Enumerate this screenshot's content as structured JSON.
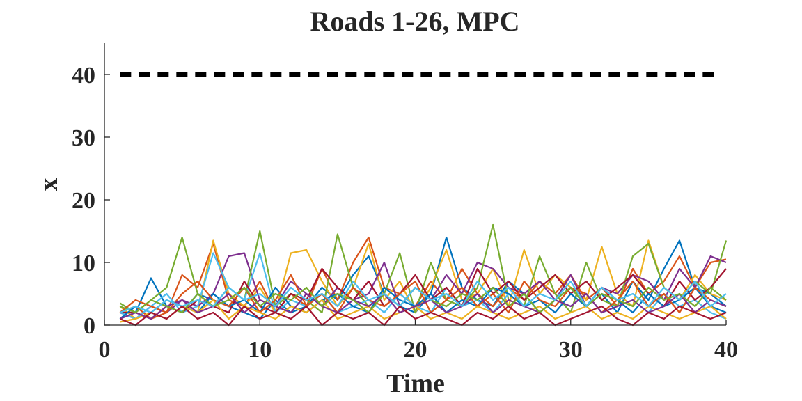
{
  "chart_data": {
    "type": "line",
    "title": "Roads 1-26, MPC",
    "xlabel": "Time",
    "ylabel": "x",
    "xlim": [
      0,
      40
    ],
    "ylim": [
      0,
      45
    ],
    "xticks": [
      0,
      10,
      20,
      30,
      40
    ],
    "yticks": [
      0,
      10,
      20,
      30,
      40
    ],
    "grid": false,
    "legend": "none",
    "threshold": {
      "value": 40,
      "style": "dashed",
      "color": "#000000"
    },
    "series_colors": [
      "#0072BD",
      "#D95319",
      "#EDB120",
      "#7E2F8E",
      "#77AC30",
      "#4DBEEE",
      "#A2142F"
    ],
    "x": [
      1,
      2,
      3,
      4,
      5,
      6,
      7,
      8,
      9,
      10,
      11,
      12,
      13,
      14,
      15,
      16,
      17,
      18,
      19,
      20,
      21,
      22,
      23,
      24,
      25,
      26,
      27,
      28,
      29,
      30,
      31,
      32,
      33,
      34,
      35,
      36,
      37,
      38,
      39,
      40
    ],
    "series": [
      {
        "values": [
          1,
          2,
          7.5,
          3,
          2,
          5,
          4,
          3,
          2,
          1,
          4,
          2,
          3,
          6,
          4,
          8,
          11,
          5,
          3,
          2,
          5,
          14,
          6,
          4,
          3,
          7,
          5,
          2,
          4,
          6,
          3,
          5,
          2,
          7,
          4,
          9,
          13.5,
          6,
          5,
          3
        ]
      },
      {
        "values": [
          2,
          3,
          1,
          2,
          8,
          6,
          13,
          4,
          3,
          7,
          2,
          5,
          3,
          9,
          4,
          10,
          14,
          6,
          5,
          3,
          7,
          4,
          9,
          5,
          3,
          6,
          4,
          7,
          5,
          8,
          4,
          6,
          3,
          9,
          5,
          7,
          11,
          6,
          10,
          10.5
        ]
      },
      {
        "values": [
          3,
          1,
          2,
          4,
          3,
          2,
          13.5,
          5,
          3,
          6,
          2,
          11.5,
          12,
          7,
          3,
          6,
          13,
          4,
          7,
          2,
          6,
          12,
          4,
          5,
          9,
          3,
          12,
          5,
          8,
          6,
          4,
          12.5,
          5,
          3,
          13.5,
          6,
          4,
          8,
          5,
          4
        ]
      },
      {
        "values": [
          2,
          1,
          3,
          2,
          4,
          3,
          5,
          11,
          11.5,
          4,
          3,
          7,
          5,
          3,
          6,
          4,
          5,
          10,
          3,
          6,
          4,
          8,
          5,
          10,
          9,
          6,
          5,
          7,
          4,
          8,
          3,
          6,
          5,
          8,
          7,
          4,
          9,
          6,
          11,
          10
        ]
      },
      {
        "values": [
          3.5,
          2,
          4,
          6,
          14,
          5,
          3,
          6,
          4,
          15,
          3,
          5,
          4,
          2,
          14.5,
          6,
          3,
          5,
          11.5,
          2,
          10,
          4,
          3,
          6,
          16,
          4,
          3,
          11,
          5,
          2,
          10,
          4,
          3,
          11,
          13,
          6,
          4,
          7,
          5,
          13.5
        ]
      },
      {
        "values": [
          2,
          1,
          3,
          5,
          2,
          3,
          11.5,
          6,
          4,
          11.5,
          2,
          4,
          3,
          5,
          2,
          3,
          4,
          2,
          5,
          3,
          2,
          6,
          3,
          4,
          2,
          5,
          3,
          2,
          4,
          3,
          5,
          2,
          3,
          4,
          2,
          5,
          3,
          4,
          2,
          1
        ]
      },
      {
        "values": [
          2,
          2,
          1,
          3,
          2,
          4,
          3,
          2,
          7,
          3,
          2,
          5,
          4,
          9,
          6,
          4,
          7,
          3,
          5,
          8,
          4,
          6,
          3,
          9,
          5,
          7,
          4,
          6,
          8,
          5,
          7,
          4,
          6,
          8,
          5,
          3,
          7,
          4,
          6,
          9
        ]
      },
      {
        "values": [
          1,
          3,
          2,
          4,
          3,
          2,
          5,
          3,
          4,
          2,
          6,
          3,
          2,
          4,
          5,
          3,
          2,
          6,
          4,
          3,
          5,
          2,
          4,
          3,
          6,
          5,
          3,
          4,
          2,
          5,
          3,
          6,
          4,
          2,
          5,
          3,
          4,
          6,
          3,
          2
        ]
      },
      {
        "values": [
          2,
          4,
          3,
          2,
          5,
          7,
          4,
          3,
          6,
          2,
          4,
          8,
          3,
          5,
          2,
          6,
          4,
          3,
          5,
          7,
          2,
          4,
          6,
          3,
          5,
          2,
          7,
          4,
          3,
          6,
          5,
          2,
          4,
          7,
          3,
          5,
          2,
          6,
          4,
          3
        ]
      },
      {
        "values": [
          0.5,
          1,
          2,
          1,
          3,
          2,
          4,
          1,
          3,
          2,
          1,
          3,
          2,
          4,
          1,
          2,
          3,
          1,
          2,
          3,
          1,
          2,
          1,
          3,
          2,
          1,
          2,
          3,
          1,
          2,
          3,
          1,
          2,
          1,
          3,
          2,
          1,
          2,
          3,
          1
        ]
      },
      {
        "values": [
          1,
          2,
          1,
          3,
          4,
          2,
          3,
          5,
          2,
          4,
          3,
          2,
          5,
          3,
          2,
          4,
          3,
          5,
          2,
          3,
          4,
          2,
          3,
          5,
          2,
          4,
          3,
          2,
          4,
          3,
          5,
          2,
          3,
          4,
          2,
          3,
          5,
          2,
          4,
          3
        ]
      },
      {
        "values": [
          3,
          2,
          4,
          3,
          2,
          5,
          3,
          4,
          6,
          3,
          5,
          4,
          6,
          3,
          5,
          4,
          2,
          5,
          3,
          6,
          4,
          3,
          5,
          4,
          6,
          3,
          5,
          2,
          4,
          6,
          3,
          5,
          4,
          3,
          6,
          4,
          5,
          3,
          6,
          4
        ]
      },
      {
        "values": [
          2,
          3,
          2,
          4,
          3,
          4,
          3,
          6,
          4,
          5,
          3,
          6,
          4,
          5,
          3,
          7,
          4,
          5,
          3,
          6,
          4,
          5,
          3,
          7,
          4,
          6,
          3,
          5,
          4,
          7,
          3,
          6,
          4,
          5,
          3,
          6,
          4,
          7,
          3,
          5
        ]
      },
      {
        "values": [
          1,
          0,
          2,
          1,
          3,
          1,
          2,
          0,
          3,
          1,
          2,
          1,
          3,
          0,
          2,
          1,
          2,
          0,
          3,
          1,
          2,
          1,
          0,
          2,
          1,
          3,
          1,
          2,
          0,
          1,
          2,
          3,
          1,
          0,
          2,
          1,
          3,
          2,
          1,
          2
        ]
      }
    ]
  }
}
